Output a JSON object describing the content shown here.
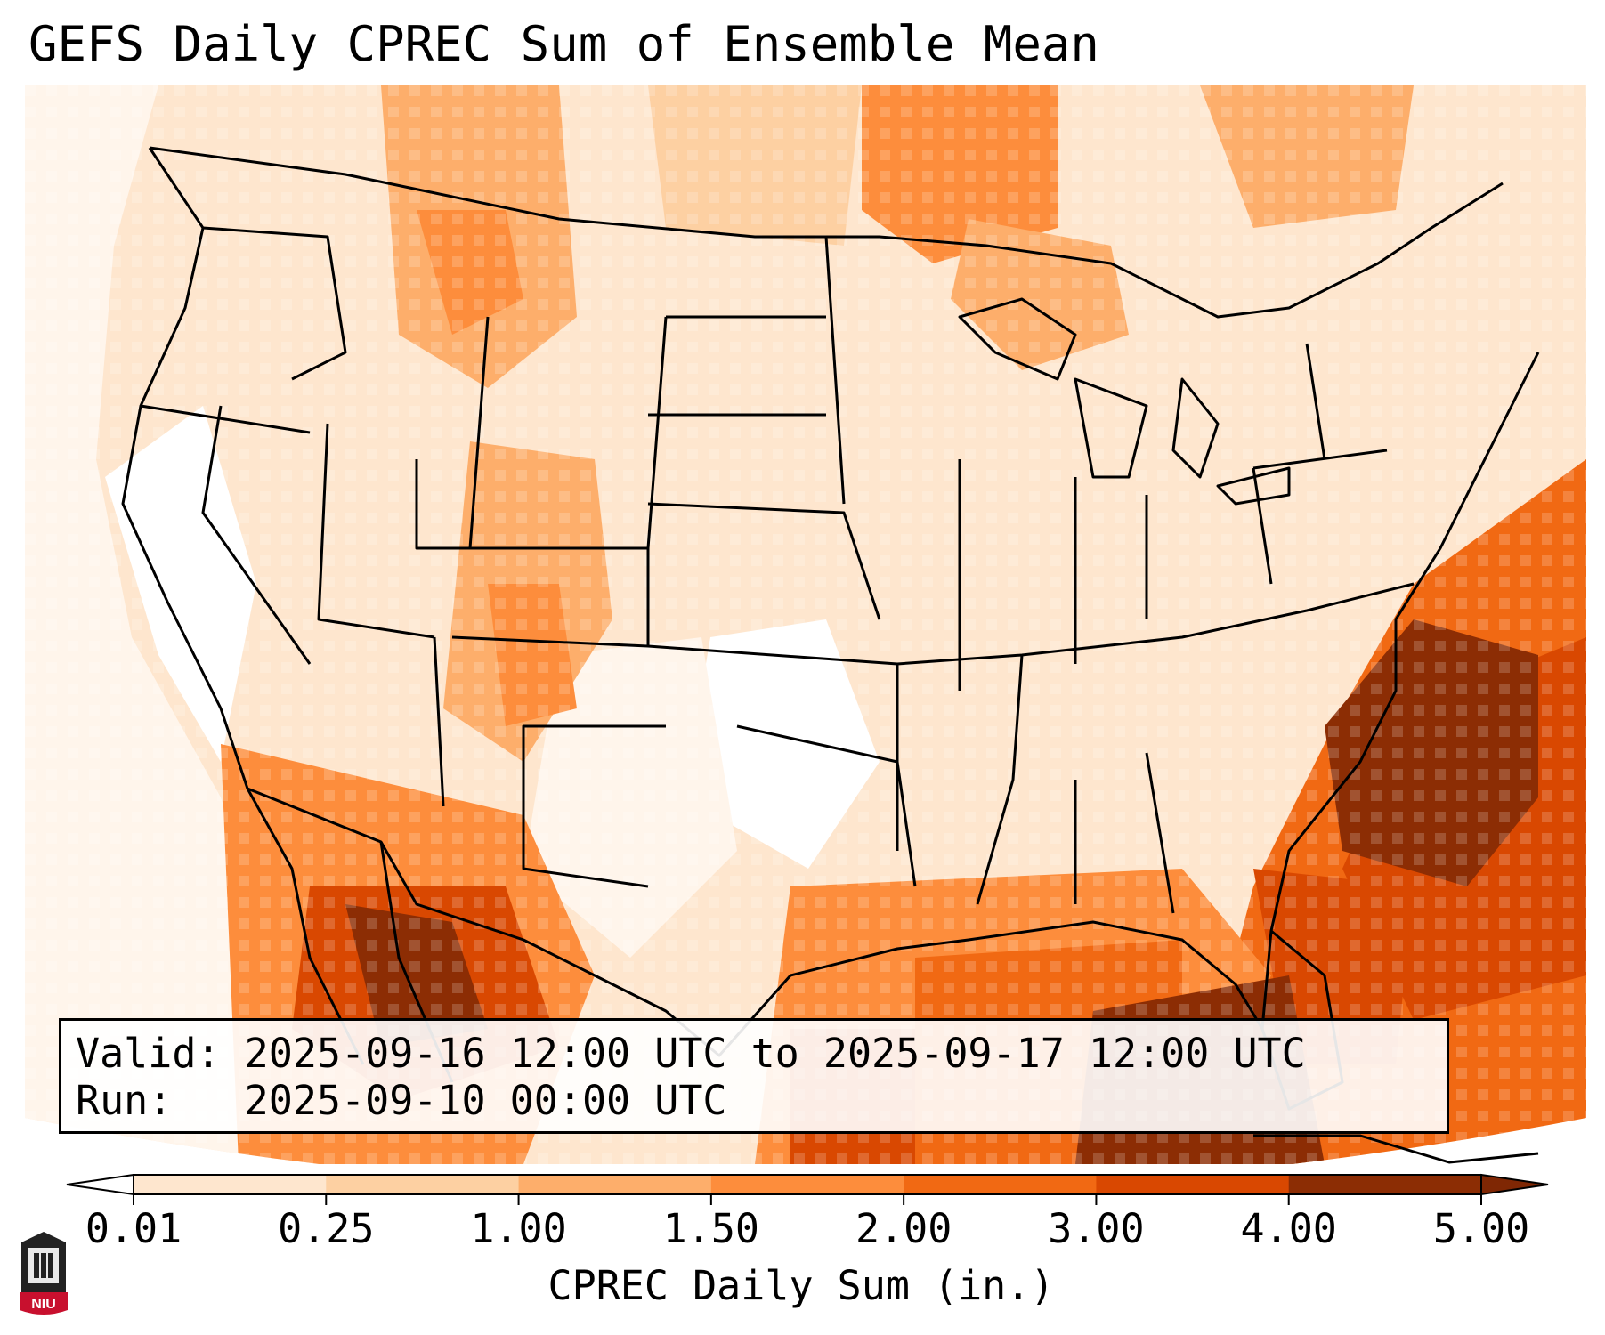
{
  "title": "GEFS Daily CPREC Sum of Ensemble Mean",
  "info": {
    "valid_label": "Valid:",
    "valid_value": "2025-09-16 12:00 UTC to 2025-09-17 12:00 UTC",
    "run_label": "Run:",
    "run_value": "2025-09-10 00:00 UTC"
  },
  "colorbar": {
    "label": "CPREC Daily Sum (in.)",
    "ticks": [
      "0.01",
      "0.25",
      "1.00",
      "1.50",
      "2.00",
      "3.00",
      "4.00",
      "5.00"
    ],
    "colors": [
      "#fff5eb",
      "#fee6ce",
      "#fdd0a2",
      "#fdae6b",
      "#fd8d3c",
      "#f16913",
      "#d94801",
      "#8c2d04"
    ],
    "under_color": "#ffffff",
    "over_color": "#7f2704"
  },
  "map": {
    "projection": "lambert-conformal",
    "region": "CONUS",
    "colors": {
      "border": "#000000",
      "low": "#fff5eb",
      "high": "#7f2704"
    }
  },
  "logo": {
    "text": "NIU",
    "color": "#c8102e"
  }
}
